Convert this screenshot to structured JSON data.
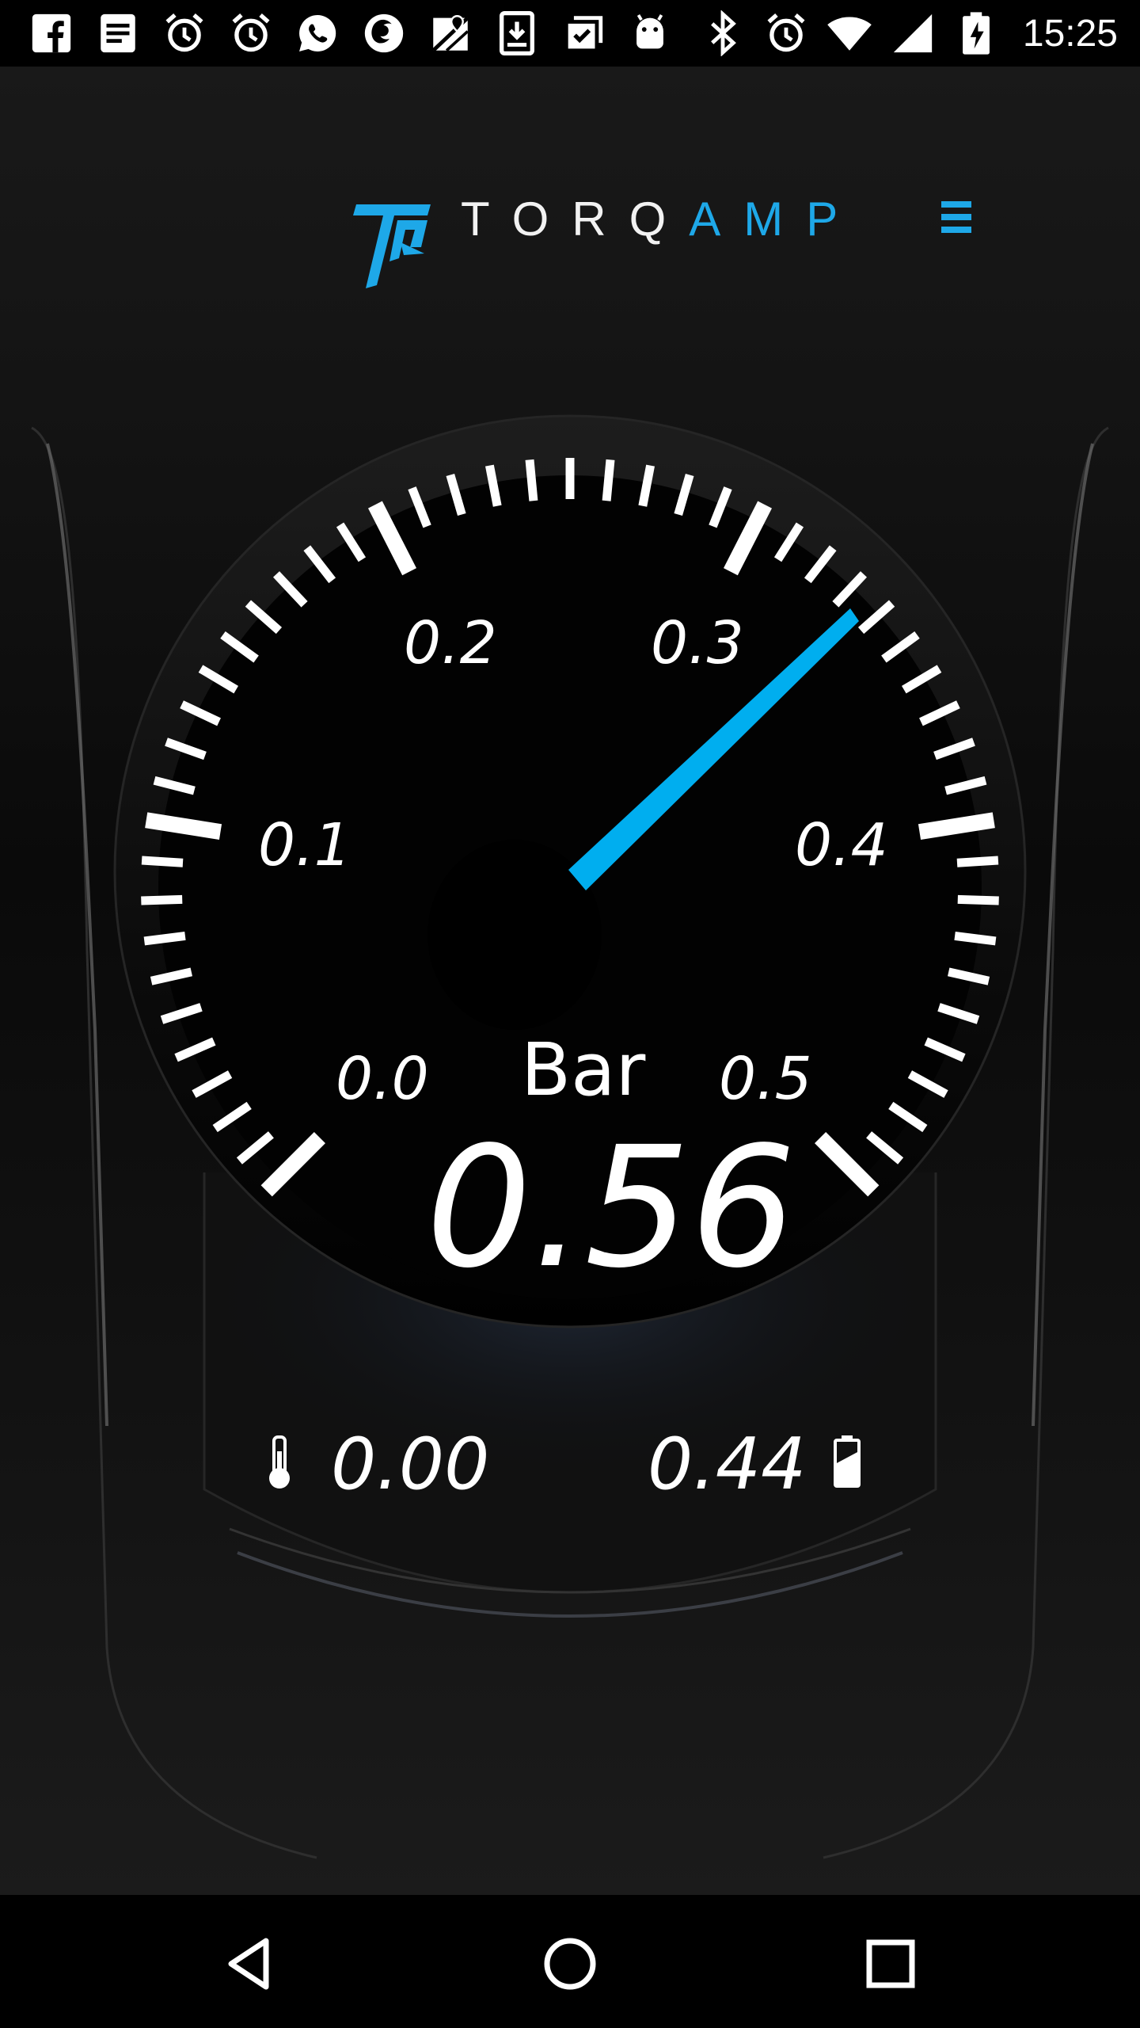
{
  "status_bar": {
    "time": "15:25",
    "notification_icons": [
      "facebook-icon",
      "notes-icon",
      "alarm-icon",
      "alarm-icon",
      "whatsapp-icon",
      "firefox-icon",
      "maps-icon",
      "download-icon",
      "clipboard-icon",
      "android-icon"
    ],
    "system_icons": [
      "bluetooth-icon",
      "alarm-icon",
      "wifi-icon",
      "cell-signal-icon",
      "battery-charging-icon"
    ]
  },
  "header": {
    "brand_part1": "TORQ",
    "brand_part2": "AMP",
    "accent_color": "#1ea8e8"
  },
  "gauge": {
    "scale_labels": [
      "0.0",
      "0.1",
      "0.2",
      "0.3",
      "0.4",
      "0.5"
    ],
    "unit": "Bar",
    "reading": "0.56",
    "needle_color": "#00aeef"
  },
  "secondary_readouts": {
    "temperature": "0.00",
    "battery": "0.44"
  },
  "nav_bar": {
    "buttons": [
      "back-icon",
      "home-icon",
      "recents-icon"
    ]
  }
}
